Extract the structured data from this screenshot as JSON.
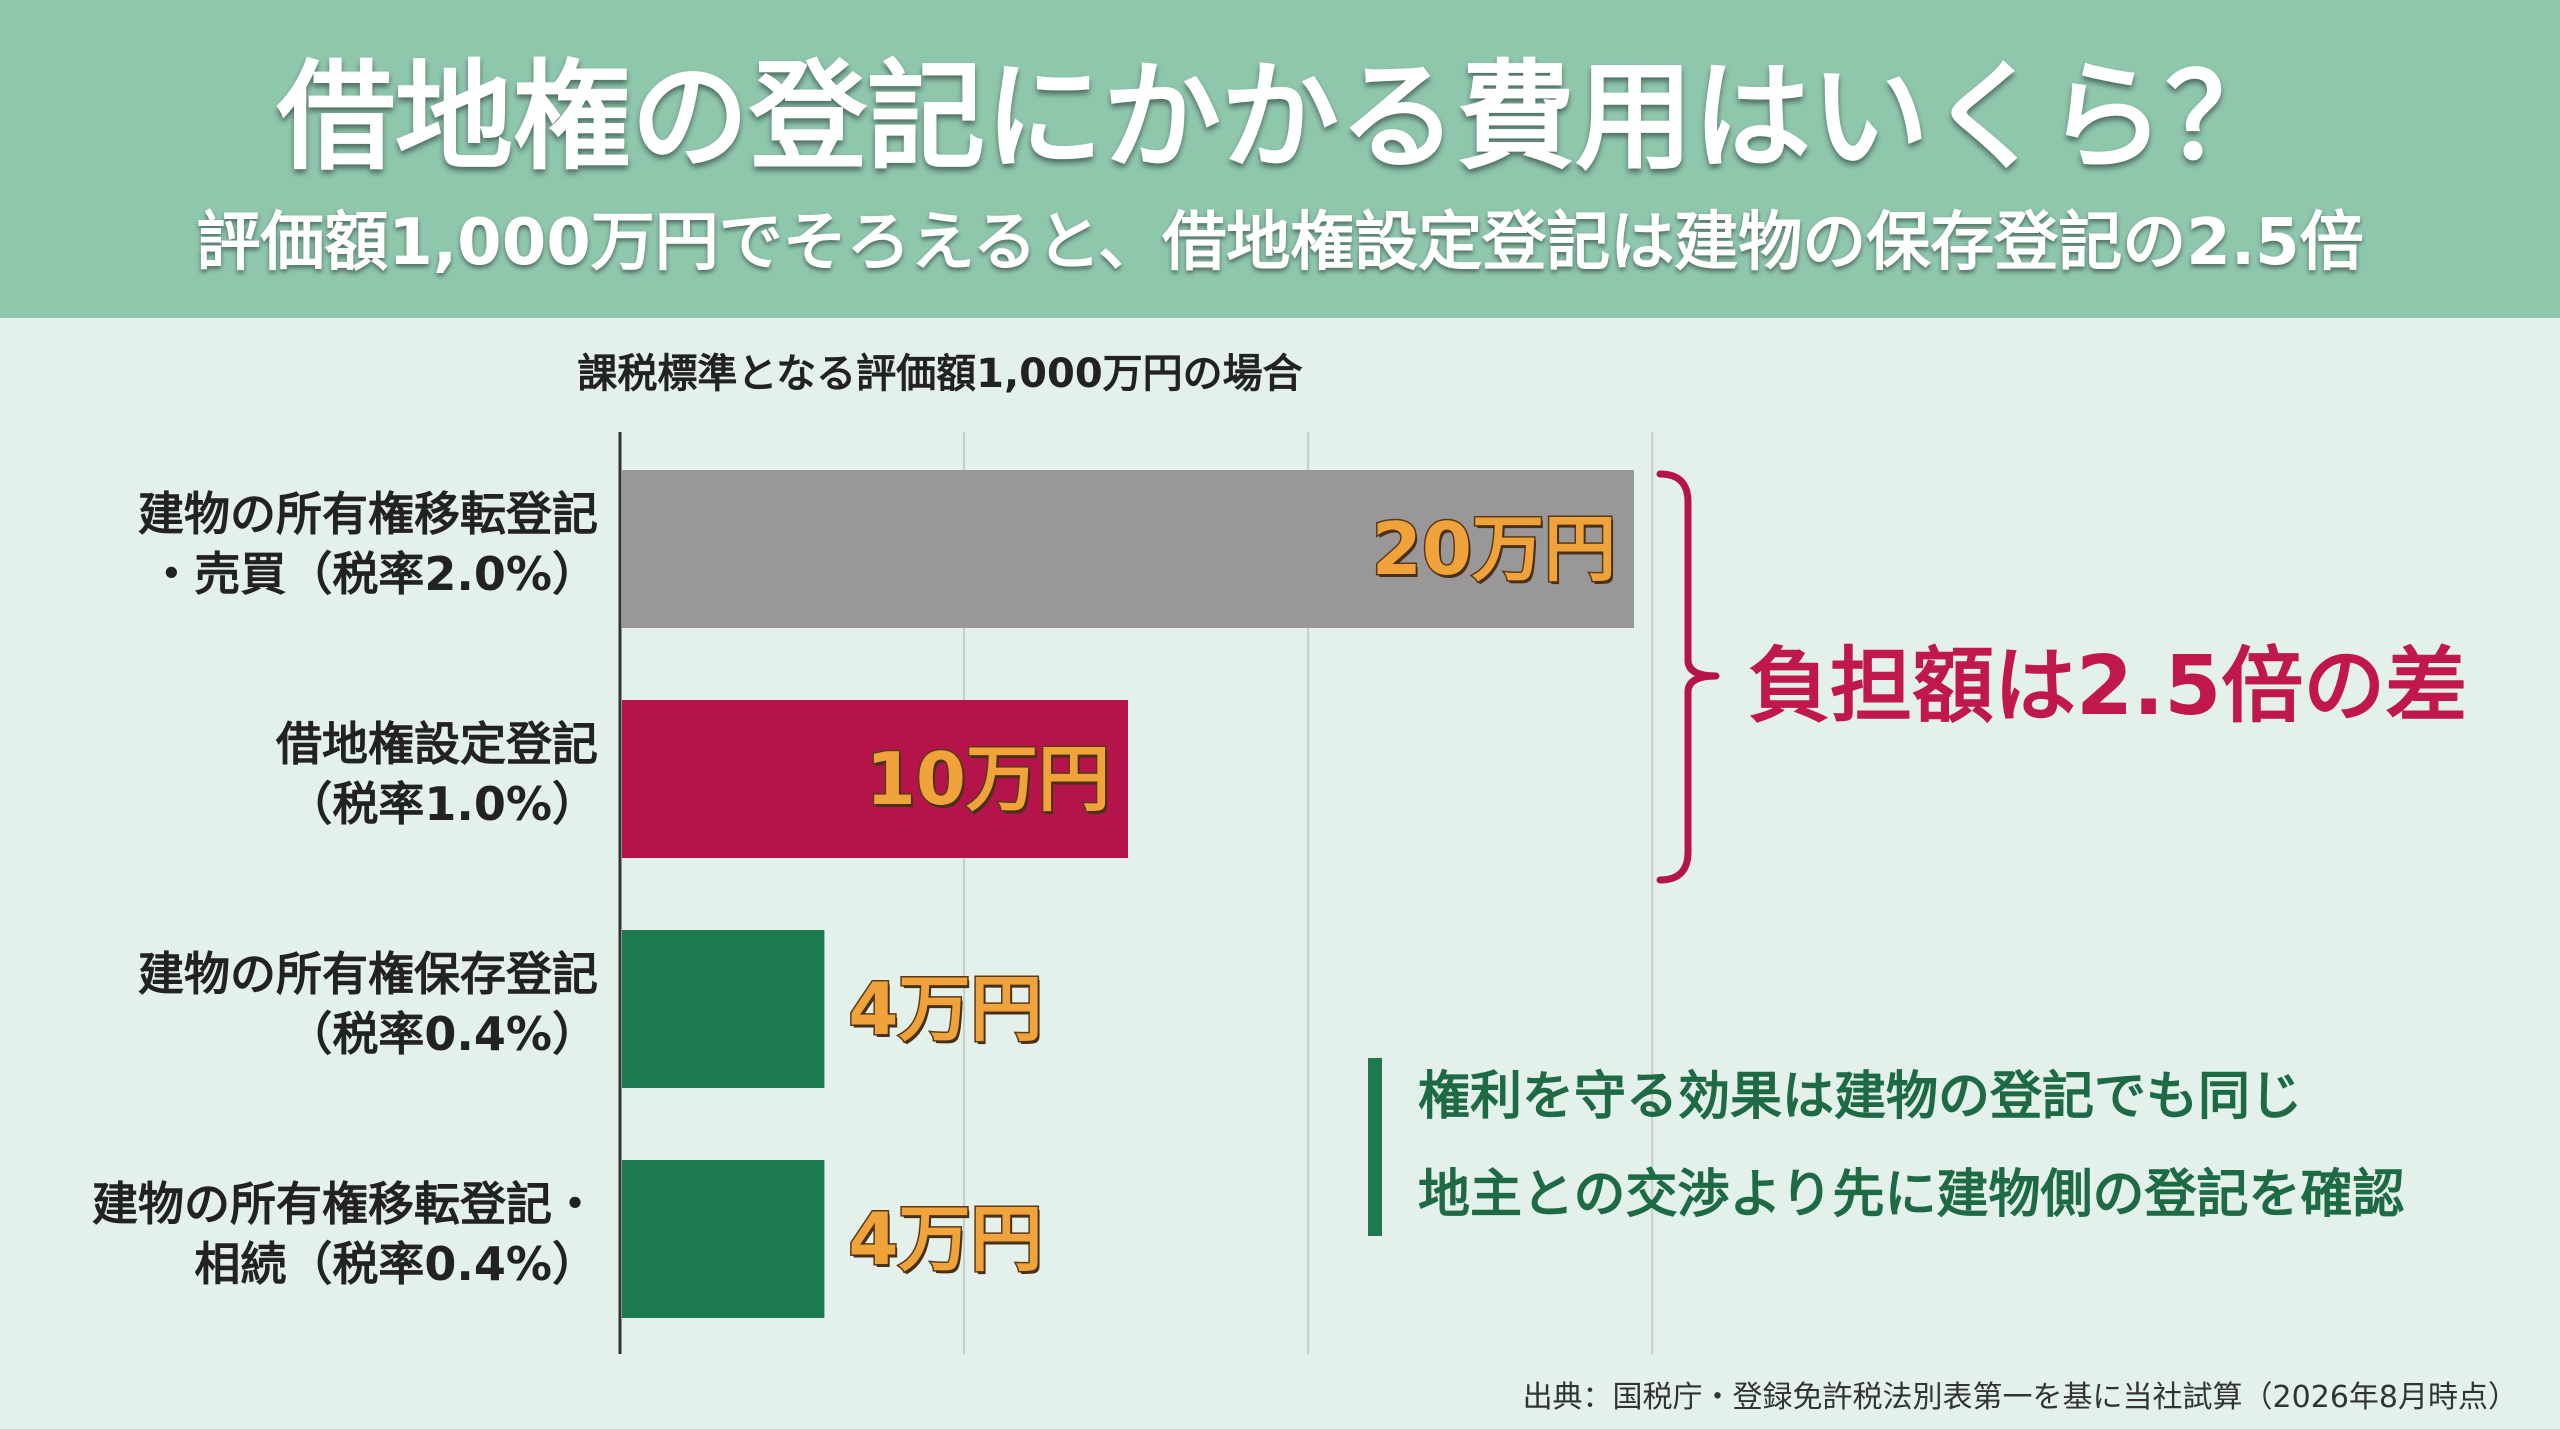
{
  "header": {
    "title": "借地権の登記にかかる費用はいくら？",
    "subtitle": "評価額1,000万円でそろえると、借地権設定登記は建物の保存登記の2.5倍"
  },
  "chart_data": {
    "type": "bar",
    "orientation": "horizontal",
    "title": "課税標準となる評価額1,000万円の場合",
    "categories": [
      [
        "建物の所有権移転登記",
        "・売買（税率2.0%）"
      ],
      [
        "借地権設定登記",
        "（税率1.0%）"
      ],
      [
        "建物の所有権保存登記",
        "（税率0.4%）"
      ],
      [
        "建物の所有権移転登記・",
        "相続（税率0.4%）"
      ]
    ],
    "values": [
      20,
      10,
      4,
      4
    ],
    "value_labels": [
      "20万円",
      "10万円",
      "4万円",
      "4万円"
    ],
    "unit": "万円",
    "xlim": [
      0,
      24
    ],
    "grid": true,
    "bar_colors": [
      "#9a9799",
      "#b5144a",
      "#1d7a50",
      "#1d7a50"
    ],
    "annotation": "負担額は2.5倍の差"
  },
  "notes": [
    "権利を守る効果は建物の登記でも同じ",
    "地主との交渉より先に建物側の登記を確認"
  ],
  "source": "出典：国税庁・登録免許税法別表第一を基に当社試算（2026年8月時点）",
  "colors": {
    "header_bg": "#8fc7ad",
    "page_bg": "#e3f1ea",
    "accent_red": "#c0184a",
    "accent_green": "#1d7a50",
    "value_orange": "#f0a33a"
  }
}
